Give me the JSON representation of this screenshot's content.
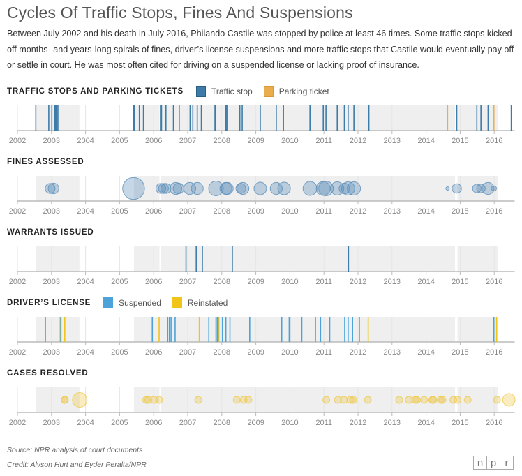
{
  "title": "Cycles Of Traffic Stops, Fines And Suspensions",
  "intro": "Between July 2002 and his death in July 2016, Philando Castile was stopped by police at least 46 times. Some traffic stops kicked off months- and years-long spirals of fines, driver’s license suspensions and more traffic stops that Castile would eventually pay off or settle in court. He was most often cited for driving on a suspended license or lacking proof of insurance.",
  "footer": {
    "source": "Source: NPR analysis of court documents",
    "credit": "Credit: Alyson Hurt and Eyder Peralta/NPR",
    "logo": [
      "n",
      "p",
      "r"
    ]
  },
  "colors": {
    "traffic": "#3d7ca8",
    "parking": "#e9ad4e",
    "suspended": "#4ba3d9",
    "reinstated": "#f0c419",
    "fines": "#5b8fb9",
    "cases": "#efc84a",
    "band": "#efefef"
  },
  "chart_data": [
    {
      "type": "timeline-ticks",
      "title": "TRAFFIC STOPS AND PARKING TICKETS",
      "xlim": [
        2002,
        2016.6
      ],
      "ticks": [
        "2002",
        "2003",
        "2004",
        "2005",
        "2006",
        "2007",
        "2008",
        "2009",
        "2010",
        "2011",
        "2012",
        "2013",
        "2014",
        "2015",
        "2016"
      ],
      "case_periods": [
        [
          2002.55,
          2003.82
        ],
        [
          2005.42,
          2006.17
        ],
        [
          2006.2,
          2014.85
        ],
        [
          2014.92,
          2016.1
        ]
      ],
      "series": [
        {
          "name": "Traffic stop",
          "color_key": "traffic",
          "dates": [
            2002.54,
            2002.92,
            2003.01,
            2003.09,
            2003.12,
            2003.14,
            2003.17,
            2003.21,
            2005.41,
            2005.43,
            2005.58,
            2005.7,
            2006.2,
            2006.23,
            2006.36,
            2006.58,
            2006.75,
            2007.07,
            2007.15,
            2007.28,
            2007.4,
            2007.8,
            2007.82,
            2008.12,
            2008.15,
            2008.53,
            2008.6,
            2009.13,
            2009.6,
            2009.81,
            2010.59,
            2010.98,
            2011.06,
            2011.39,
            2011.6,
            2011.71,
            2011.88,
            2012.32,
            2014.9,
            2015.49,
            2015.61,
            2015.82,
            2016.5
          ]
        },
        {
          "name": "Parking ticket",
          "color_key": "parking",
          "dates": [
            2014.63,
            2015.99
          ]
        }
      ]
    },
    {
      "type": "timeline-bubbles",
      "title": "FINES ASSESSED",
      "xlim": [
        2002,
        2016.6
      ],
      "ticks": [
        "2002",
        "2003",
        "2004",
        "2005",
        "2006",
        "2007",
        "2008",
        "2009",
        "2010",
        "2011",
        "2012",
        "2013",
        "2014",
        "2015",
        "2016"
      ],
      "case_periods": [
        [
          2002.55,
          2003.82
        ],
        [
          2005.42,
          2006.17
        ],
        [
          2006.2,
          2014.85
        ],
        [
          2014.92,
          2016.1
        ]
      ],
      "color_key": "fines",
      "points": {
        "dates": [
          2002.96,
          2003.06,
          2005.41,
          2006.21,
          2006.29,
          2006.36,
          2006.65,
          2006.73,
          2007.06,
          2007.28,
          2007.83,
          2008.12,
          2008.16,
          2008.56,
          2008.62,
          2009.13,
          2009.6,
          2009.83,
          2010.59,
          2010.98,
          2011.06,
          2011.39,
          2011.6,
          2011.71,
          2011.88,
          2014.63,
          2014.9,
          2015.49,
          2015.61,
          2015.82,
          2015.99
        ],
        "relative_amount": [
          50,
          58,
          246,
          50,
          50,
          50,
          74,
          58,
          74,
          74,
          110,
          74,
          74,
          50,
          74,
          81,
          74,
          81,
          100,
          100,
          110,
          90,
          58,
          90,
          90,
          6,
          45,
          38,
          38,
          74,
          14
        ]
      }
    },
    {
      "type": "timeline-ticks",
      "title": "WARRANTS ISSUED",
      "xlim": [
        2002,
        2016.6
      ],
      "ticks": [
        "2002",
        "2003",
        "2004",
        "2005",
        "2006",
        "2007",
        "2008",
        "2009",
        "2010",
        "2011",
        "2012",
        "2013",
        "2014",
        "2015",
        "2016"
      ],
      "case_periods": [
        [
          2002.55,
          2003.82
        ],
        [
          2005.42,
          2006.17
        ],
        [
          2006.2,
          2014.85
        ],
        [
          2014.92,
          2016.1
        ]
      ],
      "series": [
        {
          "name": "Warrant",
          "color_key": "traffic",
          "dates": [
            2006.95,
            2007.25,
            2007.43,
            2008.31,
            2011.72
          ]
        }
      ]
    },
    {
      "type": "timeline-ticks",
      "title": "DRIVER’S LICENSE",
      "xlim": [
        2002,
        2016.6
      ],
      "ticks": [
        "2002",
        "2003",
        "2004",
        "2005",
        "2006",
        "2007",
        "2008",
        "2009",
        "2010",
        "2011",
        "2012",
        "2013",
        "2014",
        "2015",
        "2016"
      ],
      "case_periods": [
        [
          2002.55,
          2003.82
        ],
        [
          2005.42,
          2014.85
        ],
        [
          2014.92,
          2016.1
        ]
      ],
      "series": [
        {
          "name": "Suspended",
          "color_key": "suspended",
          "dates": [
            2002.82,
            2003.26,
            2005.96,
            2006.41,
            2006.46,
            2006.51,
            2006.63,
            2007.62,
            2007.83,
            2007.87,
            2007.91,
            2008.02,
            2008.12,
            2008.24,
            2008.82,
            2009.76,
            2009.98,
            2010.0,
            2010.35,
            2010.75,
            2010.9,
            2011.17,
            2011.61,
            2011.71,
            2011.84,
            2012.04,
            2015.99
          ]
        },
        {
          "name": "Reinstated",
          "color_key": "reinstated",
          "dates": [
            2003.28,
            2003.39,
            2006.16,
            2007.34,
            2007.9,
            2012.3,
            2016.07
          ]
        }
      ]
    },
    {
      "type": "timeline-bubbles",
      "title": "CASES RESOLVED",
      "xlim": [
        2002,
        2016.6
      ],
      "ticks": [
        "2002",
        "2003",
        "2004",
        "2005",
        "2006",
        "2007",
        "2008",
        "2009",
        "2010",
        "2011",
        "2012",
        "2013",
        "2014",
        "2015",
        "2016"
      ],
      "case_periods": [
        [
          2002.55,
          2003.82
        ],
        [
          2005.42,
          2006.17
        ],
        [
          2006.2,
          2014.85
        ],
        [
          2014.92,
          2016.1
        ]
      ],
      "color_key": "cases",
      "points": {
        "dates": [
          2003.39,
          2003.39,
          2003.83,
          2005.78,
          2005.84,
          2006.01,
          2006.16,
          2007.31,
          2008.44,
          2008.64,
          2008.78,
          2011.07,
          2011.41,
          2011.59,
          2011.78,
          2011.86,
          2012.29,
          2013.21,
          2013.49,
          2013.68,
          2013.73,
          2013.94,
          2014.18,
          2014.21,
          2014.42,
          2014.48,
          2014.8,
          2014.92,
          2015.22,
          2016.08,
          2016.43
        ],
        "relative_amount": [
          25,
          25,
          110,
          25,
          25,
          25,
          25,
          25,
          25,
          25,
          25,
          25,
          25,
          25,
          25,
          25,
          25,
          25,
          25,
          25,
          25,
          25,
          25,
          25,
          25,
          25,
          25,
          25,
          25,
          25,
          80
        ]
      }
    }
  ]
}
